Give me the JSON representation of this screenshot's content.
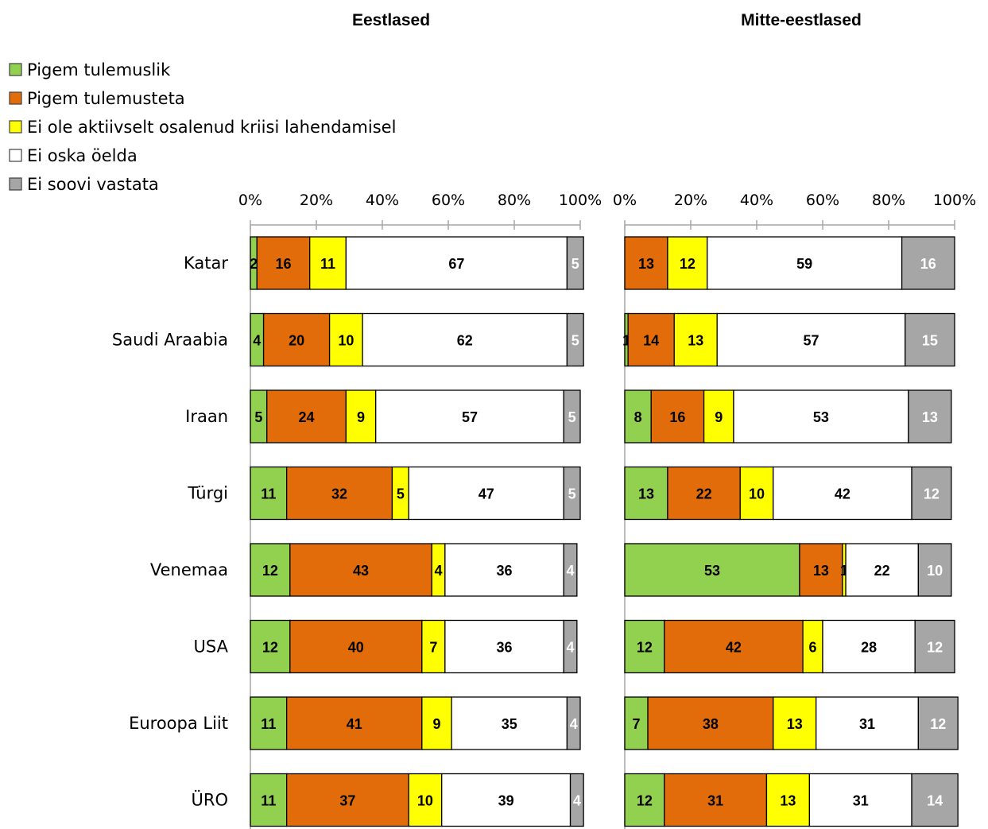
{
  "chart_data": [
    {
      "type": "bar",
      "orientation": "horizontal",
      "stacked": "percent",
      "title": "Eestlased",
      "categories": [
        "Katar",
        "Saudi Araabia",
        "Iraan",
        "Türgi",
        "Venemaa",
        "USA",
        "Euroopa Liit",
        "ÜRO"
      ],
      "xlim": [
        0,
        100
      ],
      "x_ticks": [
        "0%",
        "20%",
        "40%",
        "60%",
        "80%",
        "100%"
      ],
      "series": [
        {
          "name": "Pigem tulemuslik",
          "color": "#92D050",
          "values": [
            2,
            4,
            5,
            11,
            12,
            12,
            11,
            11
          ]
        },
        {
          "name": "Pigem tulemusteta",
          "color": "#E36C0A",
          "values": [
            16,
            20,
            24,
            32,
            43,
            40,
            41,
            37
          ]
        },
        {
          "name": "Ei ole aktiivselt osalenud kriisi lahendamisel",
          "color": "#FFFF00",
          "values": [
            11,
            10,
            9,
            5,
            4,
            7,
            9,
            10
          ]
        },
        {
          "name": "Ei oska öelda",
          "color": "#FFFFFF",
          "values": [
            67,
            62,
            57,
            47,
            36,
            36,
            35,
            39
          ]
        },
        {
          "name": "Ei soovi vastata",
          "color": "#A6A6A6",
          "values": [
            5,
            5,
            5,
            5,
            4,
            4,
            4,
            4
          ]
        }
      ]
    },
    {
      "type": "bar",
      "orientation": "horizontal",
      "stacked": "percent",
      "title": "Mitte-eestlased",
      "categories": [
        "Katar",
        "Saudi Araabia",
        "Iraan",
        "Türgi",
        "Venemaa",
        "USA",
        "Euroopa Liit",
        "ÜRO"
      ],
      "xlim": [
        0,
        100
      ],
      "x_ticks": [
        "0%",
        "20%",
        "40%",
        "60%",
        "80%",
        "100%"
      ],
      "series": [
        {
          "name": "Pigem tulemuslik",
          "color": "#92D050",
          "values": [
            null,
            1,
            8,
            13,
            53,
            12,
            7,
            12
          ]
        },
        {
          "name": "Pigem tulemusteta",
          "color": "#E36C0A",
          "values": [
            13,
            14,
            16,
            22,
            13,
            42,
            38,
            31
          ]
        },
        {
          "name": "Ei ole aktiivselt osalenud kriisi lahendamisel",
          "color": "#FFFF00",
          "values": [
            12,
            13,
            9,
            10,
            1,
            6,
            13,
            13
          ]
        },
        {
          "name": "Ei oska öelda",
          "color": "#FFFFFF",
          "values": [
            59,
            57,
            53,
            42,
            22,
            28,
            31,
            31
          ]
        },
        {
          "name": "Ei soovi vastata",
          "color": "#A6A6A6",
          "values": [
            16,
            15,
            13,
            12,
            10,
            12,
            12,
            14
          ]
        }
      ]
    }
  ],
  "legend": {
    "placement": "top-left",
    "items": [
      {
        "label": "Pigem tulemuslik",
        "color": "#92D050"
      },
      {
        "label": "Pigem tulemusteta",
        "color": "#E36C0A"
      },
      {
        "label": "Ei ole aktiivselt osalenud kriisi lahendamisel",
        "color": "#FFFF00"
      },
      {
        "label": "Ei oska öelda",
        "color": "#FFFFFF"
      },
      {
        "label": "Ei soovi vastata",
        "color": "#A6A6A6"
      }
    ]
  },
  "value_label_colors": [
    "#000000",
    "#000000",
    "#000000",
    "#000000",
    "#FFFFFF"
  ]
}
